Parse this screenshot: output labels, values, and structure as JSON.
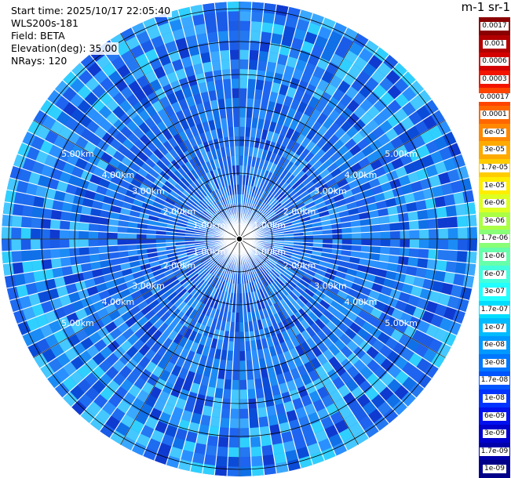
{
  "header": {
    "start_time": "Start time: 2025/10/17 22:05:40",
    "instrument": "WLS200s-181",
    "field": "Field: BETA",
    "elevation": "Elevation(deg): 35.00",
    "nrays": "NRays: 120"
  },
  "colorbar": {
    "units": "m-1 sr-1",
    "labels": [
      "0.0017",
      "0.001",
      "0.0006",
      "0.0003",
      "0.00017",
      "0.0001",
      "6e-05",
      "3e-05",
      "1.7e-05",
      "1e-05",
      "6e-06",
      "3e-06",
      "1.7e-06",
      "1e-06",
      "6e-07",
      "3e-07",
      "1.7e-07",
      "1e-07",
      "6e-08",
      "3e-08",
      "1.7e-08",
      "1e-08",
      "6e-09",
      "3e-09",
      "1.7e-09",
      "1e-09"
    ],
    "colors": [
      "#8b0000",
      "#b20000",
      "#d40000",
      "#f21400",
      "#ff4400",
      "#ff6600",
      "#ff8800",
      "#ffaa00",
      "#ffcc00",
      "#ffee00",
      "#ddff22",
      "#aaff44",
      "#88ff77",
      "#66ffaa",
      "#44ffdd",
      "#22ffff",
      "#00ddff",
      "#00bbff",
      "#0099ff",
      "#0077ff",
      "#0055ff",
      "#0033ff",
      "#0011ee",
      "#0000cc",
      "#0000aa",
      "#000088"
    ]
  },
  "ring_labels": {
    "r1": "1.00km",
    "r2": "2.00km",
    "r3": "3.00km",
    "r4": "4.00km",
    "r5": "5.00km"
  },
  "plot": {
    "background_color": "#1e64f0",
    "ring_color": "#000000",
    "ray_gap_color": "#ffffff"
  }
}
